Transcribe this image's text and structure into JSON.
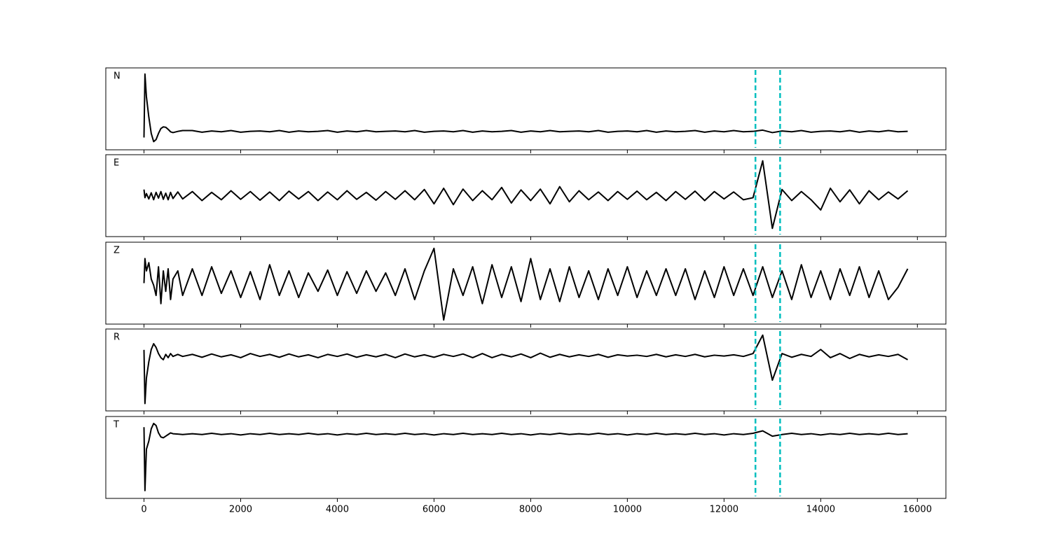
{
  "chart_data": {
    "type": "line",
    "x": [
      0,
      20,
      50,
      100,
      150,
      200,
      250,
      300,
      350,
      400,
      450,
      500,
      550,
      600,
      700,
      800,
      1000,
      1200,
      1400,
      1600,
      1800,
      2000,
      2200,
      2400,
      2600,
      2800,
      3000,
      3200,
      3400,
      3600,
      3800,
      4000,
      4200,
      4400,
      4600,
      4800,
      5000,
      5200,
      5400,
      5600,
      5800,
      6000,
      6200,
      6400,
      6600,
      6800,
      7000,
      7200,
      7400,
      7600,
      7800,
      8000,
      8200,
      8400,
      8600,
      8800,
      9000,
      9200,
      9400,
      9600,
      9800,
      10000,
      10200,
      10400,
      10600,
      10800,
      11000,
      11200,
      11400,
      11600,
      11800,
      12000,
      12200,
      12400,
      12600,
      12800,
      13000,
      13200,
      13400,
      13600,
      13800,
      14000,
      14200,
      14400,
      14600,
      14800,
      15000,
      15200,
      15400,
      15600,
      15800
    ],
    "xlim": [
      -790,
      16590
    ],
    "xticks": [
      0,
      2000,
      4000,
      6000,
      8000,
      10000,
      12000,
      14000,
      16000
    ],
    "markers": [
      12650,
      13160
    ],
    "marker_color": "#00bfbf",
    "series": [
      {
        "name": "N",
        "color": "#000000",
        "ylim": [
          -1,
          1
        ],
        "values": [
          -0.7,
          0.85,
          0.3,
          -0.2,
          -0.6,
          -0.8,
          -0.75,
          -0.6,
          -0.48,
          -0.44,
          -0.45,
          -0.5,
          -0.56,
          -0.58,
          -0.55,
          -0.53,
          -0.53,
          -0.57,
          -0.54,
          -0.56,
          -0.53,
          -0.57,
          -0.55,
          -0.54,
          -0.56,
          -0.53,
          -0.57,
          -0.54,
          -0.56,
          -0.55,
          -0.53,
          -0.57,
          -0.54,
          -0.56,
          -0.53,
          -0.56,
          -0.55,
          -0.54,
          -0.56,
          -0.53,
          -0.57,
          -0.55,
          -0.54,
          -0.56,
          -0.53,
          -0.57,
          -0.54,
          -0.56,
          -0.55,
          -0.53,
          -0.57,
          -0.54,
          -0.56,
          -0.53,
          -0.56,
          -0.55,
          -0.54,
          -0.56,
          -0.53,
          -0.57,
          -0.55,
          -0.54,
          -0.56,
          -0.53,
          -0.57,
          -0.54,
          -0.56,
          -0.55,
          -0.53,
          -0.57,
          -0.54,
          -0.56,
          -0.53,
          -0.56,
          -0.55,
          -0.52,
          -0.58,
          -0.54,
          -0.56,
          -0.53,
          -0.57,
          -0.55,
          -0.54,
          -0.56,
          -0.53,
          -0.57,
          -0.54,
          -0.56,
          -0.53,
          -0.56,
          -0.55
        ]
      },
      {
        "name": "E",
        "color": "#000000",
        "ylim": [
          -1,
          1
        ],
        "values": [
          0.15,
          -0.05,
          0.05,
          -0.08,
          0.07,
          -0.1,
          0.08,
          -0.06,
          0.1,
          -0.09,
          0.06,
          -0.1,
          0.08,
          -0.07,
          0.09,
          -0.08,
          0.1,
          -0.12,
          0.08,
          -0.1,
          0.12,
          -0.09,
          0.1,
          -0.11,
          0.09,
          -0.12,
          0.11,
          -0.08,
          0.1,
          -0.12,
          0.09,
          -0.1,
          0.12,
          -0.09,
          0.08,
          -0.11,
          0.1,
          -0.09,
          0.12,
          -0.1,
          0.15,
          -0.2,
          0.18,
          -0.22,
          0.16,
          -0.12,
          0.12,
          -0.1,
          0.2,
          -0.18,
          0.14,
          -0.12,
          0.16,
          -0.2,
          0.22,
          -0.15,
          0.12,
          -0.1,
          0.09,
          -0.12,
          0.1,
          -0.09,
          0.11,
          -0.1,
          0.08,
          -0.12,
          0.1,
          -0.09,
          0.11,
          -0.12,
          0.1,
          -0.08,
          0.09,
          -0.1,
          -0.05,
          0.85,
          -0.8,
          0.15,
          -0.12,
          0.1,
          -0.1,
          -0.35,
          0.18,
          -0.15,
          0.14,
          -0.2,
          0.12,
          -0.1,
          0.09,
          -0.08,
          0.12
        ]
      },
      {
        "name": "Z",
        "color": "#000000",
        "ylim": [
          -1,
          1
        ],
        "values": [
          0.0,
          0.6,
          0.3,
          0.5,
          0.1,
          -0.05,
          -0.3,
          0.4,
          -0.5,
          0.3,
          -0.2,
          0.35,
          -0.4,
          0.1,
          0.3,
          -0.3,
          0.35,
          -0.3,
          0.4,
          -0.25,
          0.3,
          -0.35,
          0.28,
          -0.4,
          0.45,
          -0.3,
          0.3,
          -0.35,
          0.25,
          -0.2,
          0.32,
          -0.3,
          0.28,
          -0.25,
          0.3,
          -0.2,
          0.25,
          -0.3,
          0.35,
          -0.4,
          0.3,
          0.85,
          -0.9,
          0.35,
          -0.3,
          0.4,
          -0.5,
          0.45,
          -0.35,
          0.4,
          -0.45,
          0.6,
          -0.4,
          0.35,
          -0.45,
          0.4,
          -0.35,
          0.3,
          -0.4,
          0.35,
          -0.3,
          0.4,
          -0.35,
          0.3,
          -0.3,
          0.35,
          -0.3,
          0.35,
          -0.4,
          0.3,
          -0.35,
          0.4,
          -0.3,
          0.35,
          -0.3,
          0.4,
          -0.35,
          0.3,
          -0.4,
          0.45,
          -0.35,
          0.3,
          -0.4,
          0.35,
          -0.3,
          0.4,
          -0.35,
          0.3,
          -0.4,
          -0.1,
          0.35
        ]
      },
      {
        "name": "R",
        "color": "#000000",
        "ylim": [
          -1,
          1
        ],
        "values": [
          0.49,
          -0.82,
          -0.2,
          0.2,
          0.5,
          0.64,
          0.55,
          0.4,
          0.3,
          0.25,
          0.38,
          0.3,
          0.4,
          0.33,
          0.38,
          0.33,
          0.38,
          0.31,
          0.39,
          0.32,
          0.37,
          0.3,
          0.4,
          0.33,
          0.38,
          0.31,
          0.39,
          0.32,
          0.37,
          0.3,
          0.38,
          0.33,
          0.39,
          0.31,
          0.37,
          0.32,
          0.38,
          0.3,
          0.39,
          0.32,
          0.37,
          0.31,
          0.38,
          0.33,
          0.39,
          0.3,
          0.4,
          0.3,
          0.38,
          0.32,
          0.39,
          0.3,
          0.41,
          0.31,
          0.38,
          0.32,
          0.37,
          0.33,
          0.38,
          0.31,
          0.37,
          0.34,
          0.36,
          0.33,
          0.38,
          0.32,
          0.37,
          0.33,
          0.38,
          0.32,
          0.36,
          0.34,
          0.37,
          0.33,
          0.4,
          0.85,
          -0.25,
          0.4,
          0.31,
          0.38,
          0.33,
          0.5,
          0.3,
          0.4,
          0.28,
          0.38,
          0.32,
          0.37,
          0.33,
          0.38,
          0.25
        ]
      },
      {
        "name": "T",
        "color": "#000000",
        "ylim": [
          -1,
          1
        ],
        "values": [
          0.74,
          -0.81,
          0.2,
          0.4,
          0.7,
          0.83,
          0.78,
          0.6,
          0.5,
          0.48,
          0.52,
          0.56,
          0.6,
          0.58,
          0.57,
          0.56,
          0.58,
          0.56,
          0.59,
          0.56,
          0.58,
          0.55,
          0.58,
          0.56,
          0.59,
          0.56,
          0.58,
          0.56,
          0.59,
          0.56,
          0.58,
          0.55,
          0.58,
          0.56,
          0.59,
          0.56,
          0.58,
          0.56,
          0.59,
          0.56,
          0.58,
          0.55,
          0.58,
          0.56,
          0.59,
          0.56,
          0.58,
          0.56,
          0.59,
          0.56,
          0.58,
          0.55,
          0.58,
          0.56,
          0.59,
          0.56,
          0.58,
          0.56,
          0.59,
          0.56,
          0.58,
          0.55,
          0.58,
          0.56,
          0.59,
          0.56,
          0.58,
          0.56,
          0.59,
          0.56,
          0.58,
          0.55,
          0.58,
          0.56,
          0.59,
          0.65,
          0.52,
          0.56,
          0.59,
          0.56,
          0.58,
          0.55,
          0.58,
          0.56,
          0.59,
          0.56,
          0.58,
          0.56,
          0.59,
          0.56,
          0.58
        ]
      }
    ]
  }
}
